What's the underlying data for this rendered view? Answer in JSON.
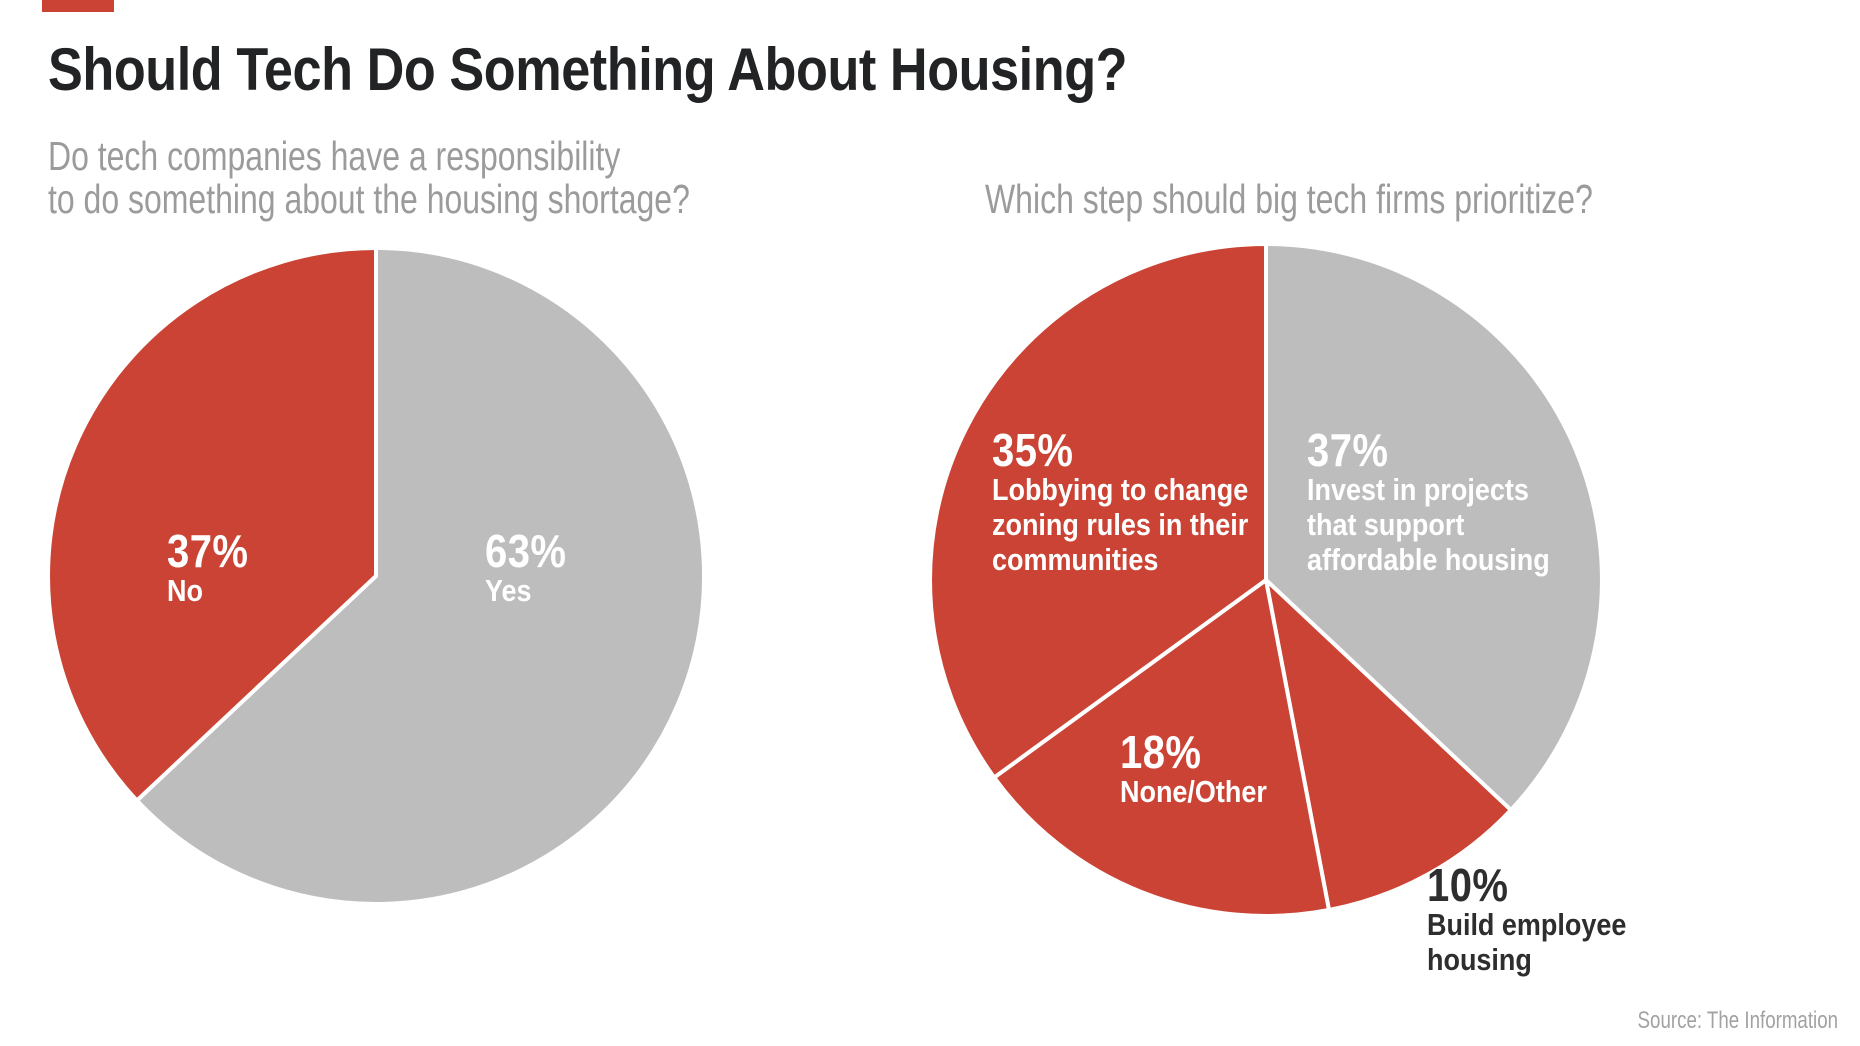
{
  "header": {
    "title": "Should Tech Do Something About Housing?"
  },
  "source": {
    "label": "Source: The Information"
  },
  "brand": {
    "mark": "red-bar"
  },
  "colors": {
    "red": "#cb4334",
    "gray": "#bdbdbd",
    "divider": "#ffffff",
    "title_text": "#222325",
    "subtitle_text": "#9b9b9b",
    "dark_label_text": "#2e2e2e",
    "source_text": "#a2a2a2"
  },
  "chart_data": [
    {
      "type": "pie",
      "title": "Do tech companies have a responsibility to do something about the housing shortage?",
      "title_lines": [
        "Do tech companies have a responsibility",
        "to do something about the housing shortage?"
      ],
      "start_angle": "12 o'clock",
      "direction": "clockwise",
      "slices": [
        {
          "label": "Yes",
          "value": 63,
          "pct": "63%",
          "color": "#bdbdbd",
          "text_color": "#ffffff",
          "lines": [
            "Yes"
          ]
        },
        {
          "label": "No",
          "value": 37,
          "pct": "37%",
          "color": "#cb4334",
          "text_color": "#ffffff",
          "lines": [
            "No"
          ]
        }
      ]
    },
    {
      "type": "pie",
      "title": "Which step should big tech firms prioritize?",
      "title_lines": [
        "Which step should big tech firms prioritize?"
      ],
      "start_angle": "12 o'clock",
      "direction": "clockwise",
      "slices": [
        {
          "label": "Invest in projects that support affordable housing",
          "value": 37,
          "pct": "37%",
          "color": "#bdbdbd",
          "text_color": "#ffffff",
          "lines": [
            "Invest in projects",
            "that support",
            "affordable housing"
          ]
        },
        {
          "label": "Build employee housing",
          "value": 10,
          "pct": "10%",
          "color": "#cb4334",
          "text_color": "#2e2e2e",
          "label_position": "outside",
          "lines": [
            "Build employee",
            "housing"
          ]
        },
        {
          "label": "None/Other",
          "value": 18,
          "pct": "18%",
          "color": "#cb4334",
          "text_color": "#ffffff",
          "lines": [
            "None/Other"
          ]
        },
        {
          "label": "Lobbying to change zoning rules in their communities",
          "value": 35,
          "pct": "35%",
          "color": "#cb4334",
          "text_color": "#ffffff",
          "lines": [
            "Lobbying to change",
            "zoning rules in their",
            "communities"
          ]
        }
      ]
    }
  ]
}
